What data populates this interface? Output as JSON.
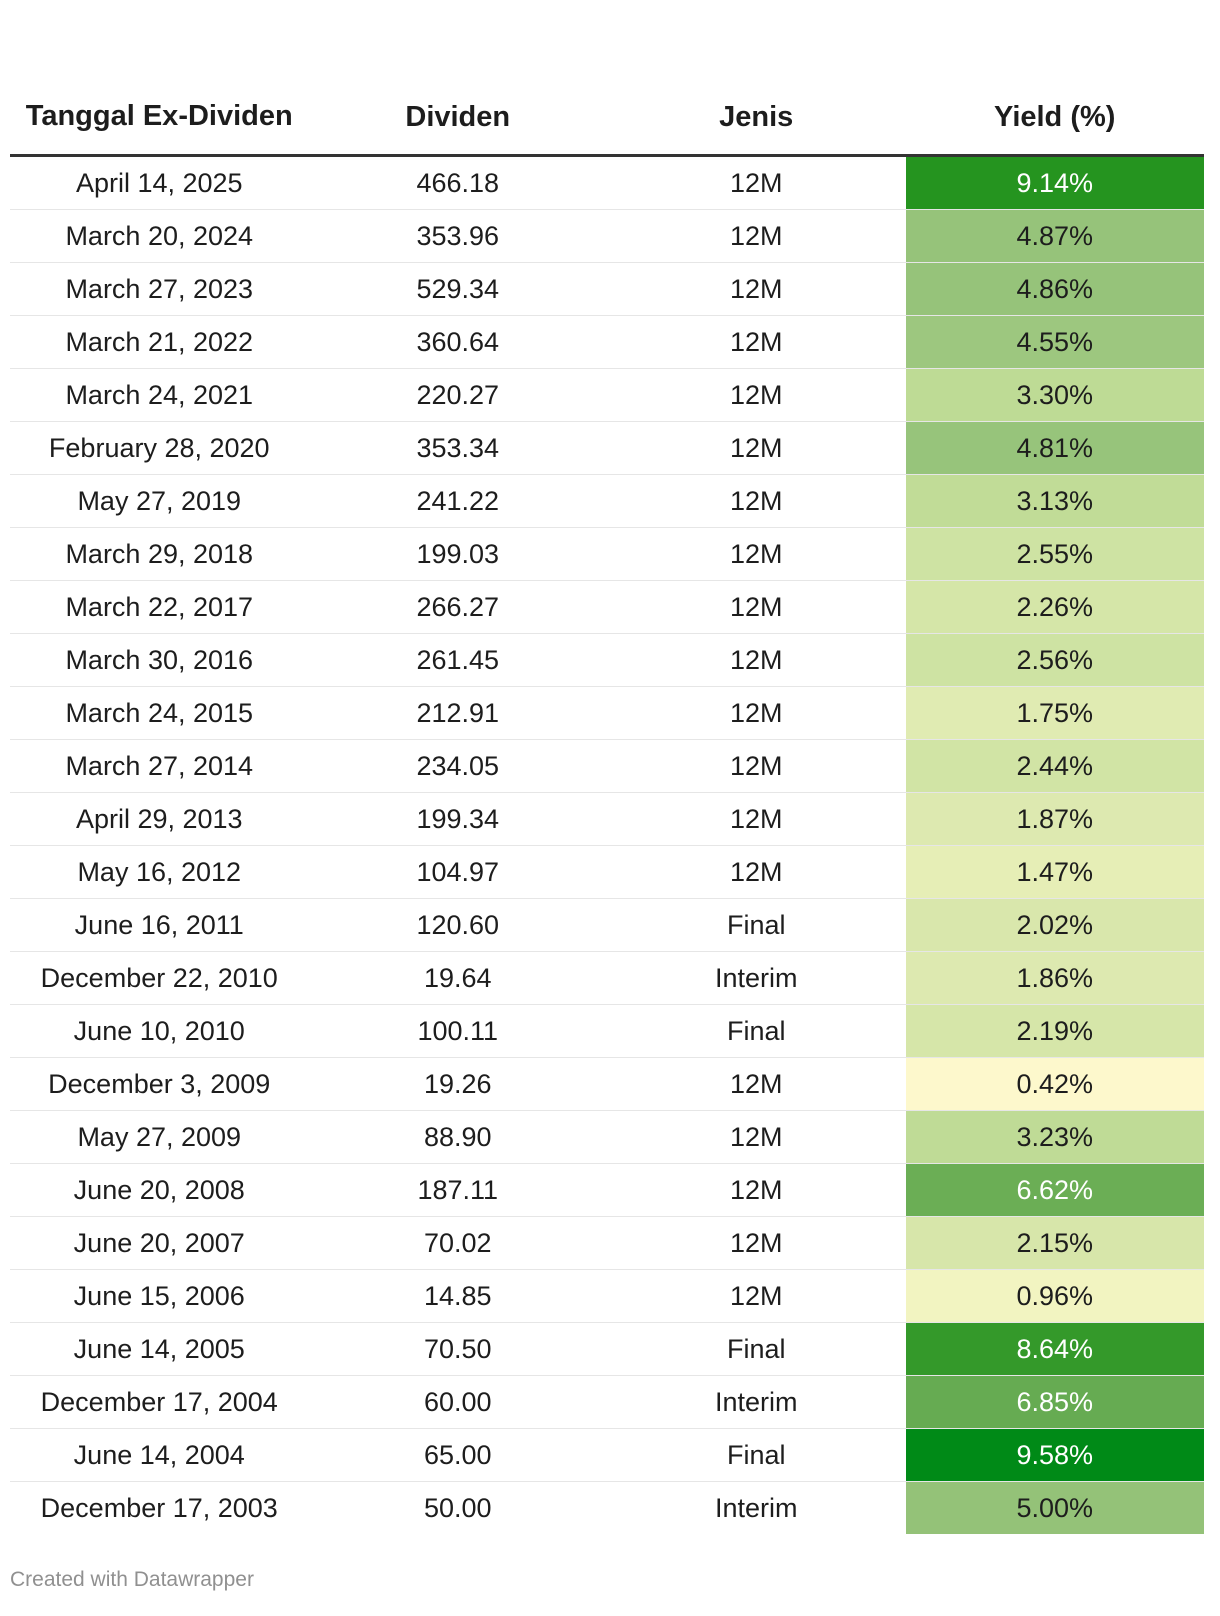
{
  "chart_data": {
    "type": "table",
    "columns": [
      "Tanggal Ex-Dividen",
      "Dividen",
      "Jenis",
      "Yield (%)"
    ],
    "rows": [
      {
        "date": "April 14, 2025",
        "dividend": "466.18",
        "type": "12M",
        "yield": "9.14%",
        "yield_value": 9.14,
        "color": "#25941f"
      },
      {
        "date": "March 20, 2024",
        "dividend": "353.96",
        "type": "12M",
        "yield": "4.87%",
        "yield_value": 4.87,
        "color": "#96c37a"
      },
      {
        "date": "March 27, 2023",
        "dividend": "529.34",
        "type": "12M",
        "yield": "4.86%",
        "yield_value": 4.86,
        "color": "#96c37a"
      },
      {
        "date": "March 21, 2022",
        "dividend": "360.64",
        "type": "12M",
        "yield": "4.55%",
        "yield_value": 4.55,
        "color": "#9dc77f"
      },
      {
        "date": "March 24, 2021",
        "dividend": "220.27",
        "type": "12M",
        "yield": "3.30%",
        "yield_value": 3.3,
        "color": "#bedb95"
      },
      {
        "date": "February 28, 2020",
        "dividend": "353.34",
        "type": "12M",
        "yield": "4.81%",
        "yield_value": 4.81,
        "color": "#97c47b"
      },
      {
        "date": "May 27, 2019",
        "dividend": "241.22",
        "type": "12M",
        "yield": "3.13%",
        "yield_value": 3.13,
        "color": "#c1dc97"
      },
      {
        "date": "March 29, 2018",
        "dividend": "199.03",
        "type": "12M",
        "yield": "2.55%",
        "yield_value": 2.55,
        "color": "#cee3a3"
      },
      {
        "date": "March 22, 2017",
        "dividend": "266.27",
        "type": "12M",
        "yield": "2.26%",
        "yield_value": 2.26,
        "color": "#d5e6a8"
      },
      {
        "date": "March 30, 2016",
        "dividend": "261.45",
        "type": "12M",
        "yield": "2.56%",
        "yield_value": 2.56,
        "color": "#cee3a3"
      },
      {
        "date": "March 24, 2015",
        "dividend": "212.91",
        "type": "12M",
        "yield": "1.75%",
        "yield_value": 1.75,
        "color": "#e0ebb2"
      },
      {
        "date": "March 27, 2014",
        "dividend": "234.05",
        "type": "12M",
        "yield": "2.44%",
        "yield_value": 2.44,
        "color": "#d1e4a5"
      },
      {
        "date": "April 29, 2013",
        "dividend": "199.34",
        "type": "12M",
        "yield": "1.87%",
        "yield_value": 1.87,
        "color": "#dde9b0"
      },
      {
        "date": "May 16, 2012",
        "dividend": "104.97",
        "type": "12M",
        "yield": "1.47%",
        "yield_value": 1.47,
        "color": "#e6eeb6"
      },
      {
        "date": "June 16, 2011",
        "dividend": "120.60",
        "type": "Final",
        "yield": "2.02%",
        "yield_value": 2.02,
        "color": "#d9e7ac"
      },
      {
        "date": "December 22, 2010",
        "dividend": "19.64",
        "type": "Interim",
        "yield": "1.86%",
        "yield_value": 1.86,
        "color": "#dde9b0"
      },
      {
        "date": "June 10, 2010",
        "dividend": "100.11",
        "type": "Final",
        "yield": "2.19%",
        "yield_value": 2.19,
        "color": "#d6e6a9"
      },
      {
        "date": "December 3, 2009",
        "dividend": "19.26",
        "type": "12M",
        "yield": "0.42%",
        "yield_value": 0.42,
        "color": "#fdf8cc"
      },
      {
        "date": "May 27, 2009",
        "dividend": "88.90",
        "type": "12M",
        "yield": "3.23%",
        "yield_value": 3.23,
        "color": "#bfdb96"
      },
      {
        "date": "June 20, 2008",
        "dividend": "187.11",
        "type": "12M",
        "yield": "6.62%",
        "yield_value": 6.62,
        "color": "#6bae55"
      },
      {
        "date": "June 20, 2007",
        "dividend": "70.02",
        "type": "12M",
        "yield": "2.15%",
        "yield_value": 2.15,
        "color": "#d7e6aa"
      },
      {
        "date": "June 15, 2006",
        "dividend": "14.85",
        "type": "12M",
        "yield": "0.96%",
        "yield_value": 0.96,
        "color": "#f2f4c1"
      },
      {
        "date": "June 14, 2005",
        "dividend": "70.50",
        "type": "Final",
        "yield": "8.64%",
        "yield_value": 8.64,
        "color": "#34992a"
      },
      {
        "date": "December 17, 2004",
        "dividend": "60.00",
        "type": "Interim",
        "yield": "6.85%",
        "yield_value": 6.85,
        "color": "#66ab52"
      },
      {
        "date": "June 14, 2004",
        "dividend": "65.00",
        "type": "Final",
        "yield": "9.58%",
        "yield_value": 9.58,
        "color": "#008a17"
      },
      {
        "date": "December 17, 2003",
        "dividend": "50.00",
        "type": "Interim",
        "yield": "5.00%",
        "yield_value": 5.0,
        "color": "#94c278"
      }
    ]
  },
  "footer": {
    "credit": "Created with Datawrapper"
  }
}
